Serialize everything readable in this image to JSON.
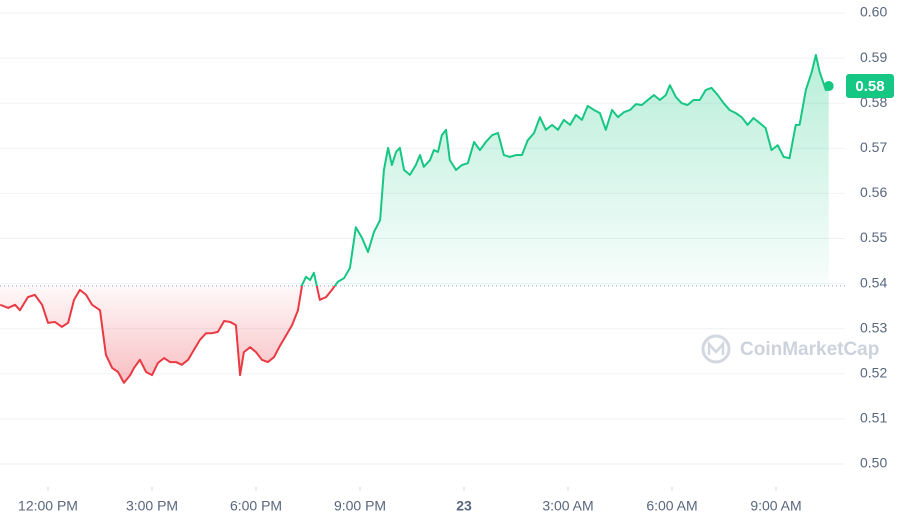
{
  "chart_data": {
    "type": "line",
    "watermark": "CoinMarketCap",
    "up_color": "#16c784",
    "down_color": "#ea3943",
    "grid": true,
    "baseline": 0.5395,
    "current_price": {
      "value": 0.5838,
      "label": "0.58"
    },
    "xlim": [
      10.615,
      34.99
    ],
    "xticks": [
      {
        "value": 12,
        "label": "12:00 PM"
      },
      {
        "value": 15,
        "label": "3:00 PM"
      },
      {
        "value": 18,
        "label": "6:00 PM"
      },
      {
        "value": 21,
        "label": "9:00 PM"
      },
      {
        "value": 24,
        "label": "23"
      },
      {
        "value": 27,
        "label": "3:00 AM"
      },
      {
        "value": 30,
        "label": "6:00 AM"
      },
      {
        "value": 33,
        "label": "9:00 AM"
      }
    ],
    "ylim": [
      0.5,
      0.6
    ],
    "yticks": [
      {
        "value": 0.5,
        "label": "0.50"
      },
      0.51,
      0.52,
      0.53,
      0.54,
      0.55,
      0.56,
      0.57,
      0.58,
      0.59,
      {
        "value": 0.6,
        "label": "0.60"
      }
    ],
    "x": [
      10.62,
      10.85,
      11.05,
      11.19,
      11.42,
      11.62,
      11.83,
      12.0,
      12.2,
      12.4,
      12.58,
      12.75,
      12.92,
      13.1,
      13.27,
      13.5,
      13.67,
      13.85,
      14.02,
      14.19,
      14.37,
      14.48,
      14.65,
      14.83,
      15.0,
      15.17,
      15.35,
      15.52,
      15.69,
      15.86,
      16.04,
      16.21,
      16.38,
      16.56,
      16.73,
      16.9,
      17.08,
      17.25,
      17.42,
      17.54,
      17.65,
      17.83,
      18.0,
      18.17,
      18.34,
      18.52,
      18.69,
      18.86,
      19.04,
      19.21,
      19.33,
      19.44,
      19.56,
      19.67,
      19.84,
      20.02,
      20.19,
      20.36,
      20.54,
      20.71,
      20.88,
      21.06,
      21.23,
      21.4,
      21.58,
      21.69,
      21.81,
      21.92,
      22.04,
      22.15,
      22.27,
      22.44,
      22.61,
      22.73,
      22.84,
      23.02,
      23.13,
      23.25,
      23.36,
      23.48,
      23.59,
      23.77,
      23.94,
      24.11,
      24.29,
      24.46,
      24.63,
      24.81,
      24.98,
      25.15,
      25.32,
      25.5,
      25.67,
      25.84,
      26.02,
      26.19,
      26.36,
      26.54,
      26.71,
      26.88,
      27.06,
      27.23,
      27.4,
      27.57,
      27.75,
      27.92,
      28.09,
      28.27,
      28.44,
      28.61,
      28.79,
      28.96,
      29.13,
      29.3,
      29.48,
      29.65,
      29.82,
      29.94,
      30.11,
      30.28,
      30.45,
      30.62,
      30.8,
      30.97,
      31.14,
      31.32,
      31.49,
      31.66,
      31.84,
      32.01,
      32.18,
      32.35,
      32.53,
      32.7,
      32.87,
      33.05,
      33.22,
      33.39,
      33.57,
      33.68,
      33.86,
      34.03,
      34.15,
      34.26,
      34.44,
      34.52
    ],
    "values": [
      0.5353,
      0.5346,
      0.5353,
      0.5341,
      0.537,
      0.5375,
      0.5353,
      0.5313,
      0.5315,
      0.5304,
      0.5313,
      0.5364,
      0.5386,
      0.5375,
      0.5353,
      0.5341,
      0.5242,
      0.5213,
      0.5204,
      0.518,
      0.5197,
      0.5213,
      0.5231,
      0.5204,
      0.5197,
      0.5224,
      0.5235,
      0.5226,
      0.5226,
      0.522,
      0.5231,
      0.5253,
      0.5275,
      0.529,
      0.529,
      0.5293,
      0.5317,
      0.5315,
      0.5308,
      0.5197,
      0.5248,
      0.5259,
      0.5248,
      0.5231,
      0.5226,
      0.5237,
      0.5262,
      0.5284,
      0.5308,
      0.5341,
      0.5397,
      0.5415,
      0.5408,
      0.5424,
      0.5364,
      0.537,
      0.5386,
      0.5404,
      0.5412,
      0.5435,
      0.5525,
      0.5501,
      0.547,
      0.5514,
      0.5541,
      0.5652,
      0.5701,
      0.5663,
      0.5692,
      0.5701,
      0.5652,
      0.5641,
      0.5663,
      0.5685,
      0.5659,
      0.5674,
      0.5696,
      0.5692,
      0.5729,
      0.5741,
      0.5674,
      0.5652,
      0.5663,
      0.5667,
      0.5714,
      0.5696,
      0.5714,
      0.5729,
      0.5734,
      0.5685,
      0.5681,
      0.5685,
      0.5685,
      0.5718,
      0.5734,
      0.5769,
      0.5741,
      0.5752,
      0.5741,
      0.5763,
      0.5752,
      0.5774,
      0.5763,
      0.5794,
      0.5785,
      0.5778,
      0.5741,
      0.5785,
      0.5769,
      0.578,
      0.5785,
      0.5798,
      0.5796,
      0.5807,
      0.5818,
      0.5807,
      0.5818,
      0.584,
      0.5814,
      0.58,
      0.5796,
      0.5807,
      0.5807,
      0.5829,
      0.5834,
      0.5818,
      0.58,
      0.5785,
      0.5778,
      0.5769,
      0.5752,
      0.5767,
      0.5756,
      0.5745,
      0.5696,
      0.5707,
      0.5681,
      0.5678,
      0.5752,
      0.5752,
      0.5829,
      0.5869,
      0.5907,
      0.5869,
      0.5829,
      0.5838
    ]
  }
}
